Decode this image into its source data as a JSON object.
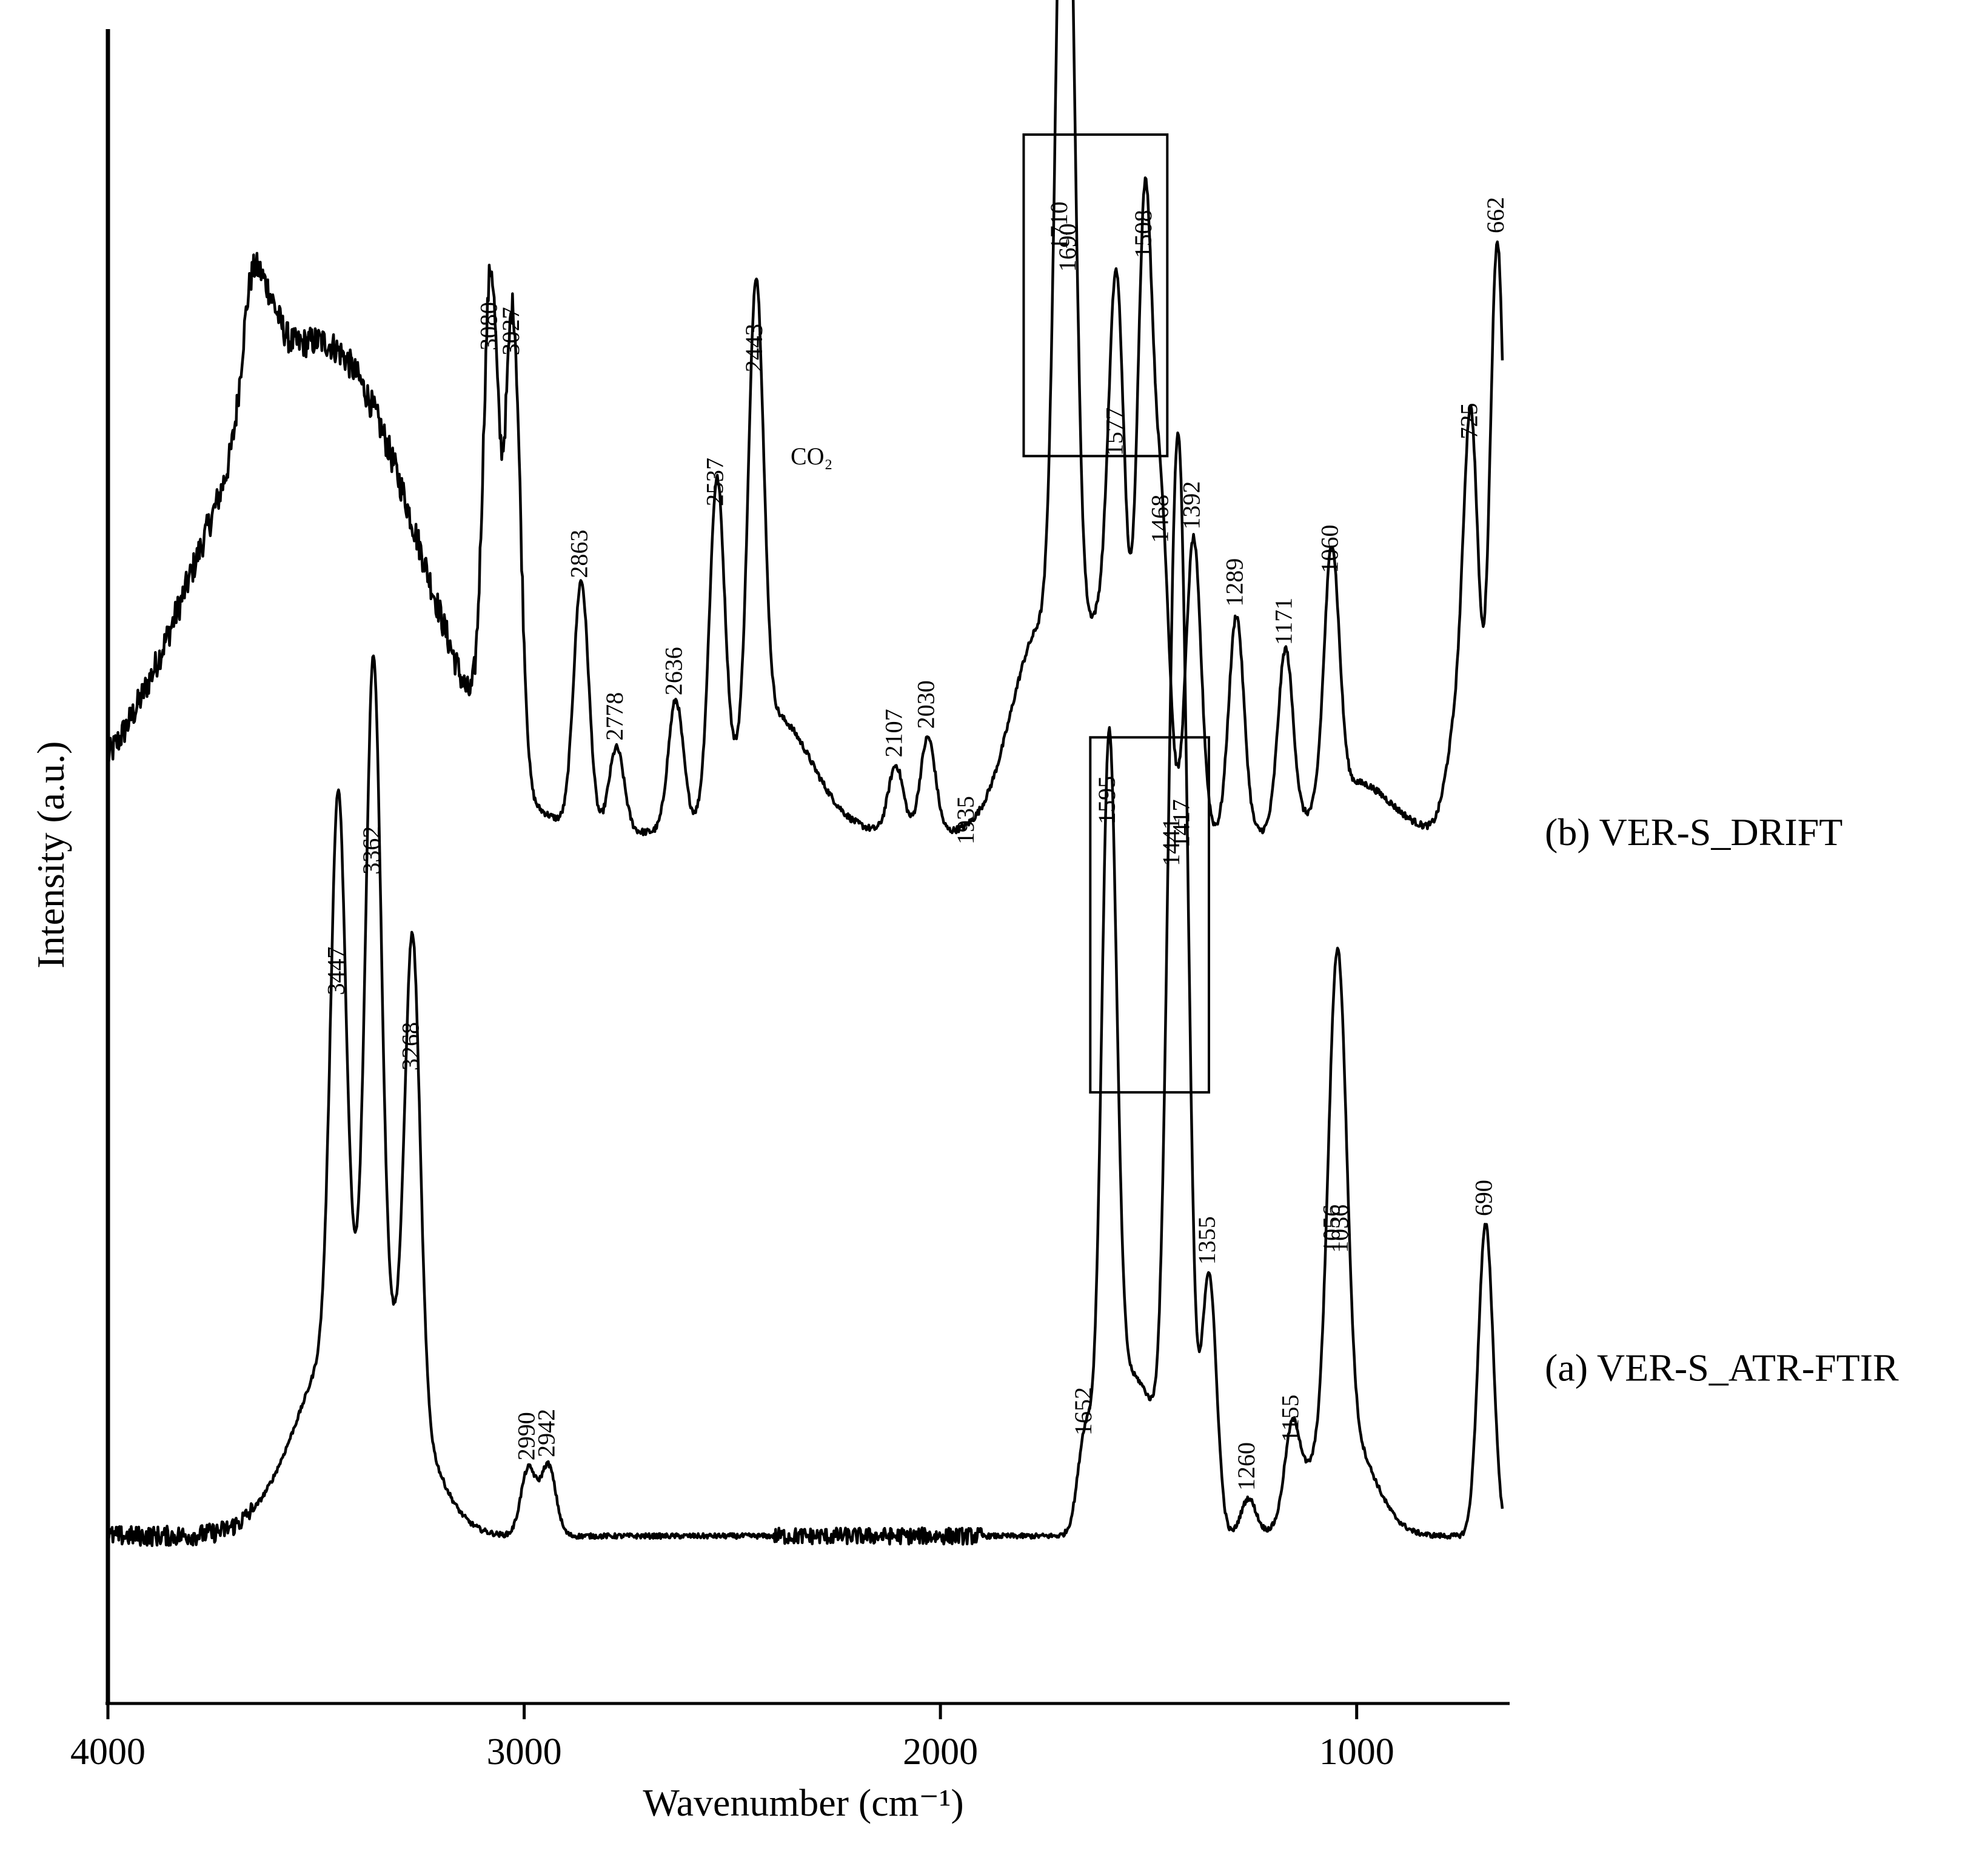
{
  "chart_data": {
    "type": "line",
    "title": "",
    "xlabel": "Wavenumber (cm⁻¹)",
    "ylabel": "Intensity (a.u.)",
    "xlim": [
      4000,
      650
    ],
    "x_reversed": true,
    "x_ticks": [
      4000,
      3000,
      2000,
      1000
    ],
    "y_ticks_shown": false,
    "grid": false,
    "legend": "none",
    "annotation": "CO₂",
    "series": [
      {
        "name": "(b) VER-S_DRIFT",
        "baseline": 0.52,
        "peaks": [
          {
            "x": 3080,
            "y": 0.803,
            "label": "3080"
          },
          {
            "x": 3027,
            "y": 0.8,
            "label": "3027"
          },
          {
            "x": 2863,
            "y": 0.667,
            "label": "2863"
          },
          {
            "x": 2778,
            "y": 0.57,
            "label": "2778"
          },
          {
            "x": 2636,
            "y": 0.597,
            "label": "2636"
          },
          {
            "x": 2537,
            "y": 0.71,
            "label": "2537"
          },
          {
            "x": 2443,
            "y": 0.79,
            "label": "2443"
          },
          {
            "x": 2107,
            "y": 0.56,
            "label": "2107"
          },
          {
            "x": 2030,
            "y": 0.577,
            "label": "2030"
          },
          {
            "x": 1935,
            "y": 0.508,
            "label": "1935"
          },
          {
            "x": 1710,
            "y": 0.863,
            "label": "1710"
          },
          {
            "x": 1690,
            "y": 0.85,
            "label": "1690"
          },
          {
            "x": 1577,
            "y": 0.74,
            "label": "1577"
          },
          {
            "x": 1508,
            "y": 0.858,
            "label": "1508"
          },
          {
            "x": 1468,
            "y": 0.688,
            "label": "1468"
          },
          {
            "x": 1392,
            "y": 0.696,
            "label": "1392"
          },
          {
            "x": 1289,
            "y": 0.65,
            "label": "1289"
          },
          {
            "x": 1171,
            "y": 0.627,
            "label": "1171"
          },
          {
            "x": 1060,
            "y": 0.67,
            "label": "1060"
          },
          {
            "x": 725,
            "y": 0.75,
            "label": "725"
          },
          {
            "x": 662,
            "y": 0.873,
            "label": "662"
          }
        ]
      },
      {
        "name": "(a) VER-S_ATR-FTIR",
        "baseline": 0.1,
        "peaks": [
          {
            "x": 3447,
            "y": 0.418,
            "label": "3447"
          },
          {
            "x": 3362,
            "y": 0.49,
            "label": "3362"
          },
          {
            "x": 3268,
            "y": 0.373,
            "label": "3268"
          },
          {
            "x": 2990,
            "y": 0.14,
            "label": "2990"
          },
          {
            "x": 2942,
            "y": 0.142,
            "label": "2942"
          },
          {
            "x": 1652,
            "y": 0.155,
            "label": "1652"
          },
          {
            "x": 1595,
            "y": 0.52,
            "label": "1595"
          },
          {
            "x": 1441,
            "y": 0.495,
            "label": "1441"
          },
          {
            "x": 1417,
            "y": 0.506,
            "label": "1417"
          },
          {
            "x": 1355,
            "y": 0.257,
            "label": "1355"
          },
          {
            "x": 1260,
            "y": 0.122,
            "label": "1260"
          },
          {
            "x": 1155,
            "y": 0.151,
            "label": "1155"
          },
          {
            "x": 1056,
            "y": 0.264,
            "label": "1056"
          },
          {
            "x": 1036,
            "y": 0.264,
            "label": "1036"
          },
          {
            "x": 690,
            "y": 0.286,
            "label": "690"
          }
        ]
      }
    ],
    "highlight_boxes": [
      {
        "series": "(b) VER-S_DRIFT",
        "x_range": [
          1800,
          1455
        ],
        "y_range": [
          0.745,
          0.937
        ]
      },
      {
        "series": "(a) VER-S_ATR-FTIR",
        "x_range": [
          1640,
          1355
        ],
        "y_range": [
          0.365,
          0.577
        ]
      }
    ]
  }
}
